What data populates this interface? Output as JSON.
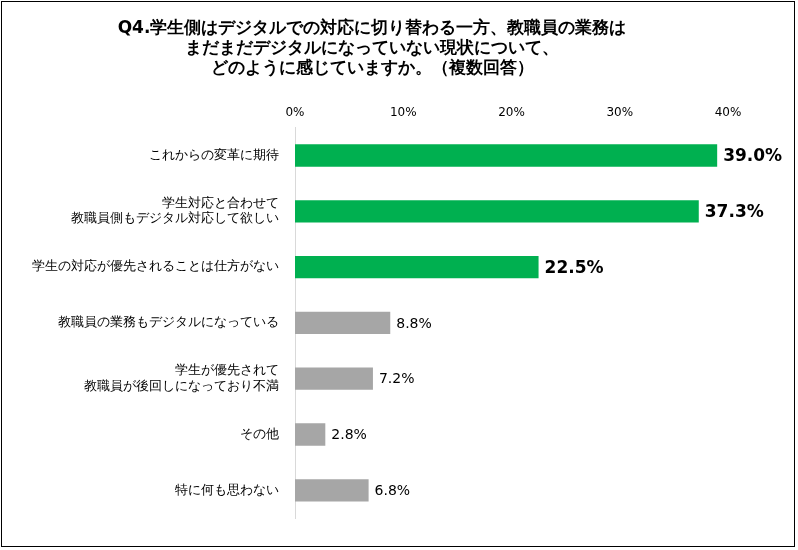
{
  "chart_data": {
    "type": "bar",
    "orientation": "horizontal",
    "title": [
      "Q4.学生側はデジタルでの対応に切り替わる一方、教職員の業務は",
      "まだまだデジタルになっていない現状について、",
      "どのように感じていますか。（複数回答）"
    ],
    "categories": [
      "これからの変革に期待",
      [
        "学生対応と合わせて",
        "教職員側もデジタル対応して欲しい"
      ],
      "学生の対応が優先されることは仕方がない",
      "教職員の業務もデジタルになっている",
      [
        "学生が優先されて",
        "教職員が後回しになっており不満"
      ],
      "その他",
      "特に何も思わない"
    ],
    "values": [
      39.0,
      37.3,
      22.5,
      8.8,
      7.2,
      2.8,
      6.8
    ],
    "value_labels": [
      "39.0%",
      "37.3%",
      "22.5%",
      "8.8%",
      "7.2%",
      "2.8%",
      "6.8%"
    ],
    "colors": [
      "#00b050",
      "#00b050",
      "#00b050",
      "#a6a6a6",
      "#a6a6a6",
      "#a6a6a6",
      "#a6a6a6"
    ],
    "xlim": [
      0,
      40
    ],
    "xticks": [
      {
        "value": 0,
        "label": "0%"
      },
      {
        "value": 10,
        "label": "10%"
      },
      {
        "value": 20,
        "label": "20%"
      },
      {
        "value": 30,
        "label": "30%"
      },
      {
        "value": 40,
        "label": "40%"
      }
    ],
    "grid": false,
    "data_labels": true
  }
}
